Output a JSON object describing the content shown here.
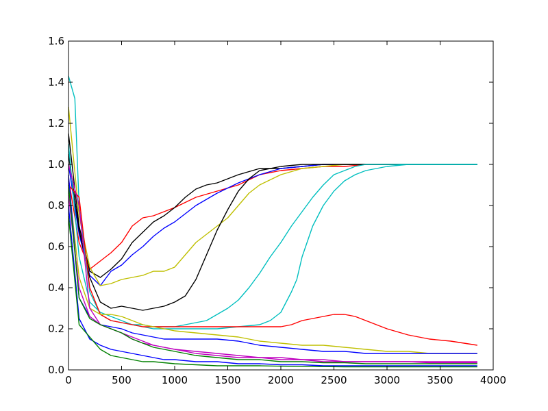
{
  "chart_data": {
    "type": "line",
    "title": "",
    "xlabel": "",
    "ylabel": "",
    "xlim": [
      0,
      4000
    ],
    "ylim": [
      0,
      1.6
    ],
    "xticks": [
      0,
      500,
      1000,
      1500,
      2000,
      2500,
      3000,
      3500,
      4000
    ],
    "yticks": [
      0.0,
      0.2,
      0.4,
      0.6,
      0.8,
      1.0,
      1.2,
      1.4,
      1.6
    ],
    "xtick_labels": [
      "0",
      "500",
      "1000",
      "1500",
      "2000",
      "2500",
      "3000",
      "3500",
      "4000"
    ],
    "ytick_labels": [
      "0.0",
      "0.2",
      "0.4",
      "0.6",
      "0.8",
      "1.0",
      "1.2",
      "1.4",
      "1.6"
    ],
    "grid": false,
    "legend": "none",
    "series": [
      {
        "color": "#ff0000",
        "x": [
          0,
          100,
          200,
          300,
          400,
          500,
          600,
          700,
          800,
          900,
          1000,
          1200,
          1400,
          1600,
          1800,
          2000,
          2200,
          2400,
          2600,
          2800,
          3000,
          3200,
          3400,
          3600,
          3850
        ],
        "y": [
          0.93,
          0.62,
          0.49,
          0.53,
          0.57,
          0.62,
          0.7,
          0.74,
          0.75,
          0.77,
          0.79,
          0.84,
          0.87,
          0.9,
          0.95,
          0.97,
          0.98,
          0.99,
          0.99,
          1.0,
          1.0,
          1.0,
          1.0,
          1.0,
          1.0
        ]
      },
      {
        "color": "#000000",
        "x": [
          0,
          100,
          200,
          300,
          400,
          500,
          600,
          700,
          800,
          900,
          1000,
          1100,
          1200,
          1300,
          1400,
          1500,
          1600,
          1800,
          2000,
          2200,
          2400,
          2600,
          2800,
          3000,
          3200,
          3400,
          3600,
          3850
        ],
        "y": [
          1.15,
          0.7,
          0.48,
          0.45,
          0.49,
          0.54,
          0.62,
          0.67,
          0.72,
          0.75,
          0.79,
          0.84,
          0.88,
          0.9,
          0.91,
          0.93,
          0.95,
          0.98,
          0.98,
          0.99,
          1.0,
          1.0,
          1.0,
          1.0,
          1.0,
          1.0,
          1.0,
          1.0
        ]
      },
      {
        "color": "#0000ff",
        "x": [
          0,
          100,
          200,
          300,
          400,
          500,
          600,
          700,
          800,
          900,
          1000,
          1200,
          1400,
          1600,
          1800,
          2000,
          2200,
          2400,
          2600,
          2800,
          3000,
          3200,
          3400,
          3600,
          3850
        ],
        "y": [
          1.0,
          0.66,
          0.46,
          0.41,
          0.48,
          0.51,
          0.56,
          0.6,
          0.65,
          0.69,
          0.72,
          0.8,
          0.86,
          0.91,
          0.95,
          0.98,
          0.99,
          1.0,
          1.0,
          1.0,
          1.0,
          1.0,
          1.0,
          1.0,
          1.0
        ]
      },
      {
        "color": "#bfbf00",
        "x": [
          0,
          100,
          200,
          300,
          400,
          500,
          600,
          700,
          800,
          900,
          1000,
          1100,
          1200,
          1300,
          1400,
          1500,
          1600,
          1700,
          1800,
          2000,
          2200,
          2400,
          2600,
          2800,
          3000,
          3200,
          3400,
          3600,
          3850
        ],
        "y": [
          1.28,
          0.75,
          0.5,
          0.41,
          0.42,
          0.44,
          0.45,
          0.46,
          0.48,
          0.48,
          0.5,
          0.56,
          0.62,
          0.66,
          0.7,
          0.74,
          0.8,
          0.86,
          0.9,
          0.95,
          0.98,
          0.99,
          1.0,
          1.0,
          1.0,
          1.0,
          1.0,
          1.0,
          1.0
        ]
      },
      {
        "color": "#000000",
        "x": [
          0,
          100,
          200,
          300,
          400,
          500,
          600,
          700,
          800,
          900,
          1000,
          1100,
          1200,
          1300,
          1400,
          1500,
          1600,
          1700,
          1800,
          2000,
          2200,
          2400,
          2600,
          2800,
          3000,
          3200,
          3400,
          3600,
          3850
        ],
        "y": [
          1.05,
          0.68,
          0.45,
          0.33,
          0.3,
          0.31,
          0.3,
          0.29,
          0.3,
          0.31,
          0.33,
          0.36,
          0.44,
          0.56,
          0.68,
          0.78,
          0.87,
          0.93,
          0.97,
          0.99,
          1.0,
          1.0,
          1.0,
          1.0,
          1.0,
          1.0,
          1.0,
          1.0,
          1.0
        ]
      },
      {
        "color": "#00bfbf",
        "x": [
          0,
          60,
          100,
          200,
          300,
          400,
          500,
          600,
          700,
          800,
          900,
          1000,
          1100,
          1200,
          1300,
          1400,
          1500,
          1600,
          1700,
          1800,
          1900,
          2000,
          2100,
          2200,
          2300,
          2400,
          2500,
          2600,
          2700,
          2800,
          3000,
          3200,
          3400,
          3600,
          3850
        ],
        "y": [
          1.43,
          1.32,
          0.8,
          0.38,
          0.27,
          0.24,
          0.23,
          0.22,
          0.22,
          0.21,
          0.21,
          0.21,
          0.22,
          0.23,
          0.24,
          0.27,
          0.3,
          0.34,
          0.4,
          0.47,
          0.55,
          0.62,
          0.7,
          0.77,
          0.84,
          0.9,
          0.95,
          0.97,
          0.99,
          1.0,
          1.0,
          1.0,
          1.0,
          1.0,
          1.0
        ]
      },
      {
        "color": "#00bfbf",
        "x": [
          0,
          100,
          200,
          300,
          400,
          500,
          600,
          700,
          800,
          900,
          1000,
          1200,
          1400,
          1600,
          1800,
          1900,
          2000,
          2100,
          2150,
          2200,
          2300,
          2400,
          2500,
          2600,
          2700,
          2800,
          3000,
          3200,
          3400,
          3600,
          3850
        ],
        "y": [
          1.1,
          0.55,
          0.33,
          0.28,
          0.26,
          0.24,
          0.22,
          0.21,
          0.2,
          0.2,
          0.2,
          0.2,
          0.2,
          0.21,
          0.22,
          0.24,
          0.28,
          0.38,
          0.44,
          0.55,
          0.7,
          0.8,
          0.87,
          0.92,
          0.95,
          0.97,
          0.99,
          1.0,
          1.0,
          1.0,
          1.0
        ]
      },
      {
        "color": "#ff0000",
        "x": [
          0,
          100,
          200,
          300,
          400,
          500,
          600,
          700,
          800,
          900,
          1000,
          1200,
          1400,
          1600,
          1800,
          2000,
          2100,
          2200,
          2300,
          2400,
          2500,
          2600,
          2700,
          2800,
          2900,
          3000,
          3200,
          3400,
          3600,
          3850
        ],
        "y": [
          0.9,
          0.84,
          0.4,
          0.27,
          0.24,
          0.23,
          0.22,
          0.21,
          0.21,
          0.21,
          0.21,
          0.21,
          0.21,
          0.21,
          0.21,
          0.21,
          0.22,
          0.24,
          0.25,
          0.26,
          0.27,
          0.27,
          0.26,
          0.24,
          0.22,
          0.2,
          0.17,
          0.15,
          0.14,
          0.12
        ]
      },
      {
        "color": "#bfbf00",
        "x": [
          0,
          100,
          200,
          300,
          400,
          500,
          600,
          700,
          800,
          900,
          1000,
          1200,
          1400,
          1600,
          1800,
          2000,
          2200,
          2400,
          2600,
          2800,
          3000,
          3200,
          3400,
          3600,
          3850
        ],
        "y": [
          0.92,
          0.45,
          0.3,
          0.27,
          0.27,
          0.26,
          0.24,
          0.22,
          0.21,
          0.2,
          0.19,
          0.18,
          0.17,
          0.16,
          0.14,
          0.13,
          0.12,
          0.12,
          0.11,
          0.1,
          0.09,
          0.09,
          0.08,
          0.08,
          0.08
        ]
      },
      {
        "color": "#0000ff",
        "x": [
          0,
          100,
          200,
          300,
          400,
          500,
          600,
          700,
          800,
          900,
          1000,
          1200,
          1400,
          1600,
          1800,
          2000,
          2200,
          2400,
          2600,
          2800,
          3000,
          3200,
          3400,
          3600,
          3850
        ],
        "y": [
          0.95,
          0.35,
          0.26,
          0.22,
          0.21,
          0.2,
          0.18,
          0.17,
          0.16,
          0.15,
          0.15,
          0.15,
          0.15,
          0.14,
          0.12,
          0.11,
          0.1,
          0.09,
          0.09,
          0.08,
          0.08,
          0.08,
          0.08,
          0.08,
          0.08
        ]
      },
      {
        "color": "#bf00bf",
        "x": [
          0,
          100,
          200,
          300,
          400,
          500,
          600,
          700,
          800,
          900,
          1000,
          1200,
          1400,
          1600,
          1800,
          2000,
          2200,
          2400,
          2600,
          2800,
          3000,
          3200,
          3400,
          3600,
          3850
        ],
        "y": [
          1.0,
          0.8,
          0.3,
          0.22,
          0.2,
          0.18,
          0.15,
          0.13,
          0.12,
          0.11,
          0.1,
          0.09,
          0.08,
          0.07,
          0.06,
          0.06,
          0.05,
          0.05,
          0.04,
          0.04,
          0.04,
          0.04,
          0.04,
          0.04,
          0.04
        ]
      },
      {
        "color": "#bf00bf",
        "x": [
          0,
          100,
          200,
          300,
          400,
          500,
          600,
          700,
          800,
          900,
          1000,
          1200,
          1400,
          1600,
          1800,
          2000,
          2200,
          2400,
          2600,
          2800,
          3000,
          3200,
          3400,
          3600,
          3850
        ],
        "y": [
          0.85,
          0.4,
          0.26,
          0.22,
          0.2,
          0.18,
          0.16,
          0.14,
          0.12,
          0.11,
          0.1,
          0.08,
          0.07,
          0.06,
          0.06,
          0.05,
          0.05,
          0.04,
          0.04,
          0.04,
          0.04,
          0.04,
          0.035,
          0.035,
          0.035
        ]
      },
      {
        "color": "#008000",
        "x": [
          0,
          100,
          200,
          300,
          400,
          500,
          600,
          700,
          800,
          900,
          1000,
          1200,
          1400,
          1600,
          1800,
          2000,
          2200,
          2400,
          2600,
          2800,
          3000,
          3200,
          3400,
          3600,
          3850
        ],
        "y": [
          0.9,
          0.35,
          0.25,
          0.22,
          0.2,
          0.18,
          0.15,
          0.13,
          0.11,
          0.1,
          0.09,
          0.07,
          0.06,
          0.05,
          0.05,
          0.04,
          0.04,
          0.035,
          0.035,
          0.03,
          0.03,
          0.03,
          0.03,
          0.03,
          0.03
        ]
      },
      {
        "color": "#0000ff",
        "x": [
          0,
          100,
          200,
          300,
          400,
          500,
          600,
          700,
          800,
          900,
          1000,
          1200,
          1400,
          1600,
          1800,
          2000,
          2200,
          2400,
          2600,
          2800,
          3000,
          3200,
          3400,
          3600,
          3850
        ],
        "y": [
          0.8,
          0.25,
          0.15,
          0.12,
          0.1,
          0.09,
          0.08,
          0.07,
          0.06,
          0.05,
          0.05,
          0.04,
          0.04,
          0.03,
          0.03,
          0.025,
          0.025,
          0.02,
          0.02,
          0.02,
          0.02,
          0.02,
          0.02,
          0.02,
          0.02
        ]
      },
      {
        "color": "#008000",
        "x": [
          0,
          100,
          200,
          300,
          400,
          500,
          600,
          700,
          800,
          900,
          1000,
          1200,
          1400,
          1600,
          1800,
          2000,
          2200,
          2400,
          2600,
          2800,
          3000,
          3200,
          3400,
          3600,
          3850
        ],
        "y": [
          0.75,
          0.22,
          0.16,
          0.1,
          0.07,
          0.06,
          0.05,
          0.04,
          0.04,
          0.035,
          0.03,
          0.025,
          0.02,
          0.02,
          0.02,
          0.018,
          0.017,
          0.016,
          0.015,
          0.015,
          0.015,
          0.015,
          0.015,
          0.015,
          0.015
        ]
      }
    ]
  }
}
